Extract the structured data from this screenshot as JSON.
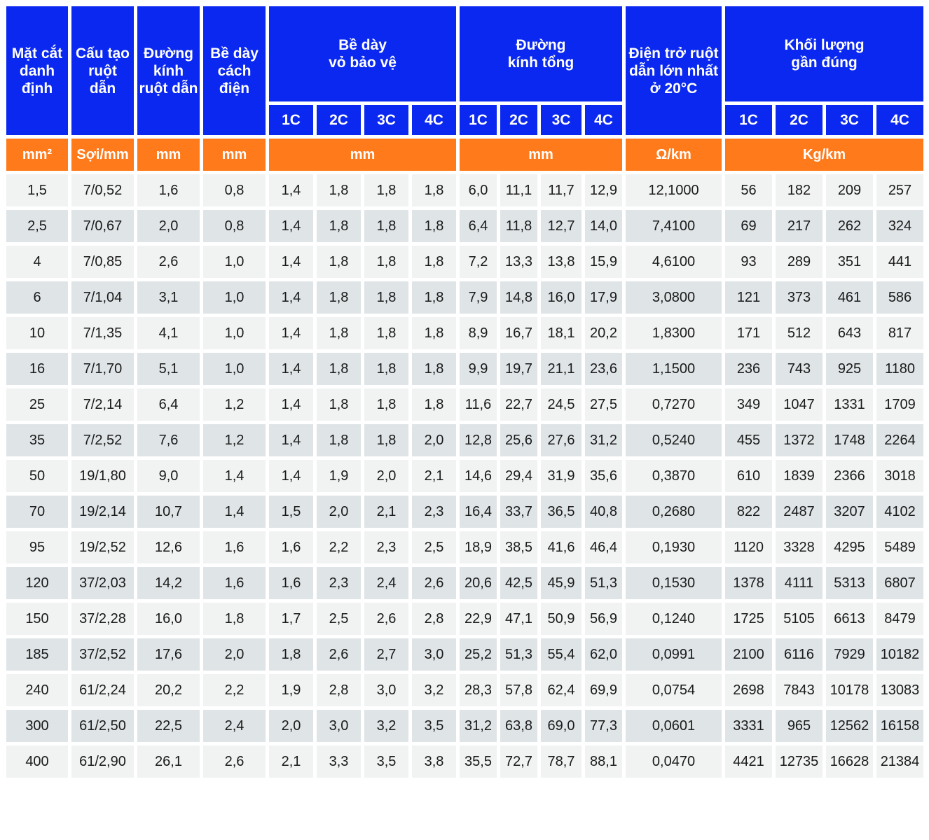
{
  "headers": {
    "cross_section": [
      "Mặt cắt",
      "danh",
      "định"
    ],
    "conductor_structure": [
      "Cấu tạo",
      "ruột",
      "dẫn"
    ],
    "conductor_diameter": [
      "Đường",
      "kính",
      "ruột dẫn"
    ],
    "insulation_thickness": [
      "Bề dày",
      "cách",
      "điện"
    ],
    "sheath_thickness": [
      "Bề dày",
      "vỏ bảo vệ"
    ],
    "overall_diameter": [
      "Đường",
      "kính tổng"
    ],
    "max_resistance": [
      "Điện trở ruột",
      "dẫn lớn nhất",
      "ở 20°C"
    ],
    "approx_weight": [
      "Khối lượng",
      "gần đúng"
    ],
    "cores": [
      "1C",
      "2C",
      "3C",
      "4C"
    ]
  },
  "units": {
    "cross_section": "mm²",
    "conductor_structure": "Sợi/mm",
    "conductor_diameter": "mm",
    "insulation_thickness": "mm",
    "sheath_thickness": "mm",
    "overall_diameter": "mm",
    "max_resistance": "Ω/km",
    "approx_weight": "Kg/km"
  },
  "rows": [
    [
      "1,5",
      "7/0,52",
      "1,6",
      "0,8",
      "1,4",
      "1,8",
      "1,8",
      "1,8",
      "6,0",
      "11,1",
      "11,7",
      "12,9",
      "12,1000",
      "56",
      "182",
      "209",
      "257"
    ],
    [
      "2,5",
      "7/0,67",
      "2,0",
      "0,8",
      "1,4",
      "1,8",
      "1,8",
      "1,8",
      "6,4",
      "11,8",
      "12,7",
      "14,0",
      "7,4100",
      "69",
      "217",
      "262",
      "324"
    ],
    [
      "4",
      "7/0,85",
      "2,6",
      "1,0",
      "1,4",
      "1,8",
      "1,8",
      "1,8",
      "7,2",
      "13,3",
      "13,8",
      "15,9",
      "4,6100",
      "93",
      "289",
      "351",
      "441"
    ],
    [
      "6",
      "7/1,04",
      "3,1",
      "1,0",
      "1,4",
      "1,8",
      "1,8",
      "1,8",
      "7,9",
      "14,8",
      "16,0",
      "17,9",
      "3,0800",
      "121",
      "373",
      "461",
      "586"
    ],
    [
      "10",
      "7/1,35",
      "4,1",
      "1,0",
      "1,4",
      "1,8",
      "1,8",
      "1,8",
      "8,9",
      "16,7",
      "18,1",
      "20,2",
      "1,8300",
      "171",
      "512",
      "643",
      "817"
    ],
    [
      "16",
      "7/1,70",
      "5,1",
      "1,0",
      "1,4",
      "1,8",
      "1,8",
      "1,8",
      "9,9",
      "19,7",
      "21,1",
      "23,6",
      "1,1500",
      "236",
      "743",
      "925",
      "1180"
    ],
    [
      "25",
      "7/2,14",
      "6,4",
      "1,2",
      "1,4",
      "1,8",
      "1,8",
      "1,8",
      "11,6",
      "22,7",
      "24,5",
      "27,5",
      "0,7270",
      "349",
      "1047",
      "1331",
      "1709"
    ],
    [
      "35",
      "7/2,52",
      "7,6",
      "1,2",
      "1,4",
      "1,8",
      "1,8",
      "2,0",
      "12,8",
      "25,6",
      "27,6",
      "31,2",
      "0,5240",
      "455",
      "1372",
      "1748",
      "2264"
    ],
    [
      "50",
      "19/1,80",
      "9,0",
      "1,4",
      "1,4",
      "1,9",
      "2,0",
      "2,1",
      "14,6",
      "29,4",
      "31,9",
      "35,6",
      "0,3870",
      "610",
      "1839",
      "2366",
      "3018"
    ],
    [
      "70",
      "19/2,14",
      "10,7",
      "1,4",
      "1,5",
      "2,0",
      "2,1",
      "2,3",
      "16,4",
      "33,7",
      "36,5",
      "40,8",
      "0,2680",
      "822",
      "2487",
      "3207",
      "4102"
    ],
    [
      "95",
      "19/2,52",
      "12,6",
      "1,6",
      "1,6",
      "2,2",
      "2,3",
      "2,5",
      "18,9",
      "38,5",
      "41,6",
      "46,4",
      "0,1930",
      "1120",
      "3328",
      "4295",
      "5489"
    ],
    [
      "120",
      "37/2,03",
      "14,2",
      "1,6",
      "1,6",
      "2,3",
      "2,4",
      "2,6",
      "20,6",
      "42,5",
      "45,9",
      "51,3",
      "0,1530",
      "1378",
      "4111",
      "5313",
      "6807"
    ],
    [
      "150",
      "37/2,28",
      "16,0",
      "1,8",
      "1,7",
      "2,5",
      "2,6",
      "2,8",
      "22,9",
      "47,1",
      "50,9",
      "56,9",
      "0,1240",
      "1725",
      "5105",
      "6613",
      "8479"
    ],
    [
      "185",
      "37/2,52",
      "17,6",
      "2,0",
      "1,8",
      "2,6",
      "2,7",
      "3,0",
      "25,2",
      "51,3",
      "55,4",
      "62,0",
      "0,0991",
      "2100",
      "6116",
      "7929",
      "10182"
    ],
    [
      "240",
      "61/2,24",
      "20,2",
      "2,2",
      "1,9",
      "2,8",
      "3,0",
      "3,2",
      "28,3",
      "57,8",
      "62,4",
      "69,9",
      "0,0754",
      "2698",
      "7843",
      "10178",
      "13083"
    ],
    [
      "300",
      "61/2,50",
      "22,5",
      "2,4",
      "2,0",
      "3,0",
      "3,2",
      "3,5",
      "31,2",
      "63,8",
      "69,0",
      "77,3",
      "0,0601",
      "3331",
      "965",
      "12562",
      "16158"
    ],
    [
      "400",
      "61/2,90",
      "26,1",
      "2,6",
      "2,1",
      "3,3",
      "3,5",
      "3,8",
      "35,5",
      "72,7",
      "78,7",
      "88,1",
      "0,0470",
      "4421",
      "12735",
      "16628",
      "21384"
    ]
  ],
  "colors": {
    "header_bg": "#0a28f0",
    "unit_bg": "#ff7a1a",
    "row_light": "#f1f2f2",
    "row_dark": "#dfe4e6"
  }
}
